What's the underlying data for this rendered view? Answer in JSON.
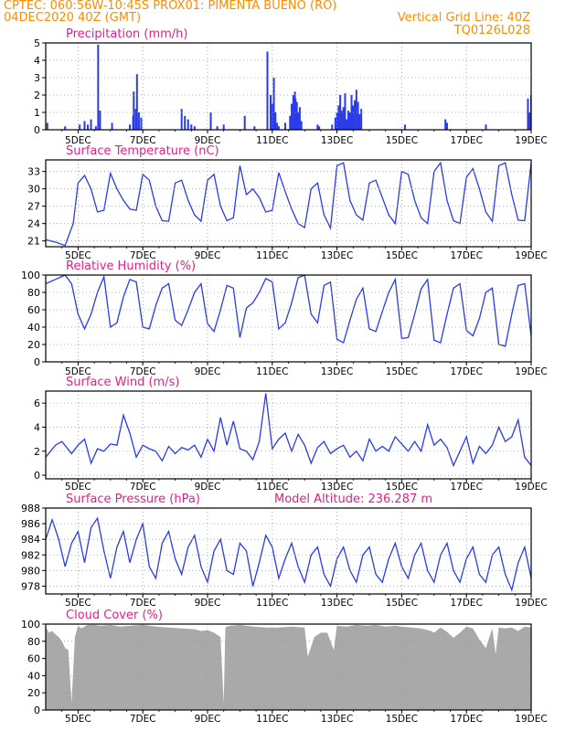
{
  "header": {
    "line1_left": "CPTEC:  060:56W-10:45S  PROX01: PIMENTA BUENO (RO)",
    "line2_left": "04DEC2020 40Z (GMT)",
    "line2_right": "Vertical Grid Line: 40Z",
    "line3_right": "TQ0126L028"
  },
  "colors": {
    "header": "#ff8c00",
    "title": "#e0218a",
    "series": "#2a3be8",
    "cloud": "#a9a9a9",
    "grid": "#9a9a9a"
  },
  "time_axis": {
    "start": "04DEC 04Z",
    "end": "19DEC 04Z",
    "start_day": 4,
    "end_day": 19,
    "tick_labels": [
      "5DEC",
      "7DEC",
      "9DEC",
      "11DEC",
      "13DEC",
      "15DEC",
      "17DEC",
      "19DEC"
    ]
  },
  "chart_data": [
    {
      "id": "precip",
      "type": "bar",
      "title": "Precipitation (mm/h)",
      "ylim": [
        0,
        5
      ],
      "yticks": [
        0,
        1,
        2,
        3,
        4,
        5
      ],
      "x_day": [
        4.05,
        4.6,
        5.05,
        5.2,
        5.3,
        5.4,
        5.55,
        5.62,
        5.68,
        6.05,
        6.6,
        6.7,
        6.72,
        6.78,
        6.82,
        6.88,
        6.95,
        8.2,
        8.3,
        8.4,
        8.5,
        8.6,
        9.1,
        9.3,
        9.5,
        10.15,
        10.45,
        10.85,
        10.95,
        11.0,
        11.05,
        11.1,
        11.15,
        11.2,
        11.4,
        11.55,
        11.6,
        11.65,
        11.7,
        11.72,
        11.76,
        11.8,
        11.85,
        11.9,
        12.4,
        12.45,
        12.85,
        12.95,
        13.0,
        13.05,
        13.1,
        13.15,
        13.2,
        13.25,
        13.3,
        13.35,
        13.4,
        13.45,
        13.5,
        13.55,
        13.6,
        13.65,
        13.7,
        13.75,
        15.1,
        16.35,
        16.4,
        17.6,
        18.9,
        18.95,
        19.0
      ],
      "values": [
        0.4,
        0.2,
        0.3,
        0.5,
        0.3,
        0.6,
        0.2,
        4.9,
        1.1,
        0.4,
        0.3,
        0.8,
        2.2,
        1.2,
        3.2,
        1.0,
        0.7,
        1.2,
        0.8,
        0.6,
        0.3,
        0.2,
        1.0,
        0.2,
        0.3,
        0.8,
        0.2,
        4.5,
        2.0,
        1.5,
        3.0,
        1.0,
        0.4,
        0.2,
        0.4,
        0.8,
        1.5,
        2.0,
        2.2,
        1.8,
        1.6,
        1.0,
        1.3,
        0.5,
        0.3,
        0.2,
        0.3,
        0.7,
        1.0,
        1.4,
        2.0,
        1.1,
        1.3,
        2.1,
        0.6,
        1.1,
        1.0,
        2.0,
        1.4,
        1.7,
        2.3,
        1.6,
        0.9,
        1.2,
        0.3,
        0.6,
        0.4,
        0.3,
        1.8,
        1.0,
        2.0
      ]
    },
    {
      "id": "temp",
      "type": "line",
      "title": "Surface Temperature (nC)",
      "ylim": [
        20,
        35
      ],
      "yticks": [
        21,
        24,
        27,
        30,
        33
      ],
      "x_day": [
        4.0,
        4.3,
        4.6,
        4.85,
        5.0,
        5.2,
        5.4,
        5.6,
        5.8,
        6.0,
        6.2,
        6.4,
        6.6,
        6.8,
        7.0,
        7.2,
        7.4,
        7.6,
        7.8,
        8.0,
        8.2,
        8.4,
        8.6,
        8.8,
        9.0,
        9.2,
        9.4,
        9.6,
        9.8,
        10.0,
        10.2,
        10.4,
        10.6,
        10.8,
        11.0,
        11.2,
        11.4,
        11.6,
        11.8,
        12.0,
        12.2,
        12.4,
        12.6,
        12.8,
        13.0,
        13.2,
        13.4,
        13.6,
        13.8,
        14.0,
        14.2,
        14.4,
        14.6,
        14.8,
        15.0,
        15.2,
        15.4,
        15.6,
        15.8,
        16.0,
        16.2,
        16.4,
        16.6,
        16.8,
        17.0,
        17.2,
        17.4,
        17.6,
        17.8,
        18.0,
        18.2,
        18.4,
        18.6,
        18.8,
        19.0
      ],
      "values": [
        21.2,
        20.8,
        20.2,
        24.0,
        31.0,
        32.3,
        30.0,
        26.0,
        26.3,
        32.7,
        30.0,
        28.0,
        26.5,
        26.3,
        32.5,
        31.5,
        27.0,
        24.5,
        24.4,
        31.0,
        31.5,
        28.0,
        25.5,
        24.4,
        31.5,
        32.5,
        27.0,
        24.5,
        25.0,
        34.0,
        29.0,
        30.0,
        28.5,
        26.0,
        26.3,
        32.8,
        29.5,
        26.5,
        24.0,
        23.3,
        30.0,
        31.0,
        25.5,
        23.2,
        34.0,
        34.5,
        28.0,
        25.5,
        24.6,
        31.0,
        31.5,
        28.5,
        25.5,
        24.0,
        33.0,
        32.5,
        28.0,
        25.0,
        24.0,
        33.0,
        34.5,
        28.0,
        24.5,
        24.0,
        32.0,
        33.5,
        30.0,
        26.0,
        24.4,
        34.0,
        34.5,
        29.0,
        24.6,
        24.5,
        34.5
      ]
    },
    {
      "id": "rh",
      "type": "line",
      "title": "Relative Humidity (%)",
      "ylim": [
        0,
        100
      ],
      "yticks": [
        0,
        20,
        40,
        60,
        80,
        100
      ],
      "x_day": [
        4.0,
        4.3,
        4.6,
        4.8,
        5.0,
        5.2,
        5.4,
        5.6,
        5.8,
        6.0,
        6.2,
        6.4,
        6.6,
        6.8,
        7.0,
        7.2,
        7.4,
        7.6,
        7.8,
        8.0,
        8.2,
        8.4,
        8.6,
        8.8,
        9.0,
        9.2,
        9.4,
        9.6,
        9.8,
        10.0,
        10.2,
        10.4,
        10.6,
        10.8,
        11.0,
        11.2,
        11.4,
        11.6,
        11.8,
        12.0,
        12.2,
        12.4,
        12.6,
        12.8,
        13.0,
        13.2,
        13.4,
        13.6,
        13.8,
        14.0,
        14.2,
        14.4,
        14.6,
        14.8,
        15.0,
        15.2,
        15.4,
        15.6,
        15.8,
        16.0,
        16.2,
        16.4,
        16.6,
        16.8,
        17.0,
        17.2,
        17.4,
        17.6,
        17.8,
        18.0,
        18.2,
        18.4,
        18.6,
        18.8,
        19.0
      ],
      "values": [
        90,
        95,
        100,
        90,
        55,
        38,
        55,
        80,
        98,
        40,
        45,
        75,
        95,
        92,
        40,
        38,
        65,
        85,
        90,
        48,
        42,
        60,
        80,
        90,
        44,
        35,
        60,
        88,
        85,
        28,
        62,
        68,
        80,
        96,
        92,
        38,
        45,
        68,
        97,
        100,
        55,
        45,
        88,
        92,
        26,
        22,
        48,
        72,
        85,
        38,
        35,
        58,
        80,
        95,
        27,
        28,
        55,
        84,
        95,
        25,
        22,
        55,
        85,
        90,
        36,
        30,
        50,
        80,
        85,
        20,
        18,
        55,
        88,
        90,
        30
      ]
    },
    {
      "id": "wind",
      "type": "line",
      "title": "Surface Wind (m/s)",
      "ylim": [
        -0.3,
        7
      ],
      "yticks": [
        0,
        2,
        4,
        6
      ],
      "x_day": [
        4.0,
        4.3,
        4.5,
        4.8,
        5.0,
        5.2,
        5.4,
        5.6,
        5.8,
        6.0,
        6.2,
        6.4,
        6.6,
        6.8,
        7.0,
        7.2,
        7.4,
        7.6,
        7.8,
        8.0,
        8.2,
        8.4,
        8.6,
        8.8,
        9.0,
        9.2,
        9.4,
        9.6,
        9.8,
        10.0,
        10.2,
        10.4,
        10.6,
        10.8,
        11.0,
        11.2,
        11.4,
        11.6,
        11.8,
        12.0,
        12.2,
        12.4,
        12.6,
        12.8,
        13.0,
        13.2,
        13.4,
        13.6,
        13.8,
        14.0,
        14.2,
        14.4,
        14.6,
        14.8,
        15.0,
        15.2,
        15.4,
        15.6,
        15.8,
        16.0,
        16.2,
        16.4,
        16.6,
        16.8,
        17.0,
        17.2,
        17.4,
        17.6,
        17.8,
        18.0,
        18.2,
        18.4,
        18.6,
        18.8,
        19.0
      ],
      "values": [
        1.5,
        2.5,
        2.8,
        1.8,
        2.5,
        3.0,
        1.0,
        2.2,
        2.0,
        2.6,
        2.5,
        5.0,
        3.5,
        1.5,
        2.5,
        2.2,
        2.0,
        1.2,
        2.4,
        1.8,
        2.3,
        2.1,
        2.5,
        1.5,
        3.0,
        2.0,
        4.8,
        2.5,
        4.5,
        2.2,
        2.0,
        1.3,
        2.8,
        6.8,
        2.2,
        3.0,
        3.5,
        2.0,
        3.4,
        2.5,
        1.0,
        2.3,
        2.8,
        1.8,
        2.2,
        2.5,
        1.5,
        2.0,
        1.2,
        3.0,
        2.0,
        2.4,
        2.0,
        3.2,
        2.6,
        2.0,
        2.8,
        2.0,
        4.2,
        2.5,
        3.0,
        2.3,
        0.8,
        2.0,
        3.2,
        1.0,
        2.4,
        1.8,
        2.5,
        4.0,
        2.8,
        3.2,
        4.6,
        1.5,
        0.8
      ]
    },
    {
      "id": "pres",
      "type": "line",
      "title": "Surface Pressure (hPa)",
      "subtitle": "Model Altitude: 236.287 m",
      "ylim": [
        977,
        988
      ],
      "yticks": [
        978,
        980,
        982,
        984,
        986,
        988
      ],
      "x_day": [
        4.0,
        4.2,
        4.4,
        4.6,
        4.8,
        5.0,
        5.2,
        5.4,
        5.6,
        5.8,
        6.0,
        6.2,
        6.4,
        6.6,
        6.8,
        7.0,
        7.2,
        7.4,
        7.6,
        7.8,
        8.0,
        8.2,
        8.4,
        8.6,
        8.8,
        9.0,
        9.2,
        9.4,
        9.6,
        9.8,
        10.0,
        10.2,
        10.4,
        10.6,
        10.8,
        11.0,
        11.2,
        11.4,
        11.6,
        11.8,
        12.0,
        12.2,
        12.4,
        12.6,
        12.8,
        13.0,
        13.2,
        13.4,
        13.6,
        13.8,
        14.0,
        14.2,
        14.4,
        14.6,
        14.8,
        15.0,
        15.2,
        15.4,
        15.6,
        15.8,
        16.0,
        16.2,
        16.4,
        16.6,
        16.8,
        17.0,
        17.2,
        17.4,
        17.6,
        17.8,
        18.0,
        18.2,
        18.4,
        18.6,
        18.8,
        19.0
      ],
      "values": [
        984,
        986.5,
        984,
        980.5,
        983.5,
        985,
        981,
        985.5,
        986.7,
        982.5,
        979,
        983,
        985,
        981,
        984,
        986,
        980.5,
        979,
        983.5,
        985,
        981.5,
        979.5,
        983,
        984.5,
        980.5,
        978.5,
        982.5,
        984,
        980,
        979.5,
        983.5,
        982.5,
        978,
        981,
        984.5,
        983,
        979,
        981.5,
        983.5,
        980.5,
        978.5,
        982,
        983,
        979.5,
        978,
        981.5,
        983,
        980,
        978.5,
        982,
        983,
        979.5,
        978.5,
        981.5,
        983.5,
        980.5,
        979,
        982,
        983.5,
        980,
        978.5,
        982,
        983.5,
        980,
        978.5,
        981.5,
        983,
        979.5,
        978.5,
        982,
        983,
        979.5,
        977.5,
        981,
        983,
        979
      ]
    },
    {
      "id": "cloud",
      "type": "area",
      "title": "Cloud Cover (%)",
      "ylim": [
        0,
        100
      ],
      "yticks": [
        0,
        20,
        40,
        60,
        80,
        100
      ],
      "x_day": [
        4.0,
        4.1,
        4.2,
        4.3,
        4.4,
        4.5,
        4.6,
        4.7,
        4.8,
        4.9,
        5.0,
        5.1,
        5.2,
        5.3,
        5.5,
        5.7,
        6.0,
        6.3,
        6.6,
        7.0,
        7.4,
        7.8,
        8.2,
        8.6,
        8.8,
        9.0,
        9.2,
        9.4,
        9.5,
        9.55,
        9.6,
        9.7,
        10.0,
        10.4,
        10.8,
        11.2,
        11.6,
        12.0,
        12.1,
        12.3,
        12.5,
        12.7,
        12.9,
        13.0,
        13.3,
        13.6,
        13.9,
        14.2,
        14.5,
        14.8,
        15.0,
        15.3,
        15.6,
        15.9,
        16.0,
        16.2,
        16.4,
        16.6,
        16.8,
        17.0,
        17.2,
        17.4,
        17.6,
        17.8,
        17.9,
        18.0,
        18.2,
        18.4,
        18.6,
        18.8,
        19.0
      ],
      "values": [
        97,
        90,
        92,
        88,
        85,
        80,
        72,
        70,
        8,
        85,
        98,
        95,
        97,
        99,
        99,
        98,
        99,
        97,
        98,
        99,
        97,
        96,
        95,
        94,
        92,
        93,
        90,
        85,
        8,
        96,
        97,
        98,
        99,
        97,
        96,
        96,
        97,
        96,
        62,
        85,
        90,
        90,
        70,
        98,
        97,
        99,
        98,
        99,
        97,
        98,
        97,
        96,
        95,
        92,
        90,
        96,
        91,
        84,
        90,
        97,
        95,
        82,
        72,
        95,
        65,
        96,
        95,
        96,
        92,
        97,
        96
      ]
    }
  ]
}
